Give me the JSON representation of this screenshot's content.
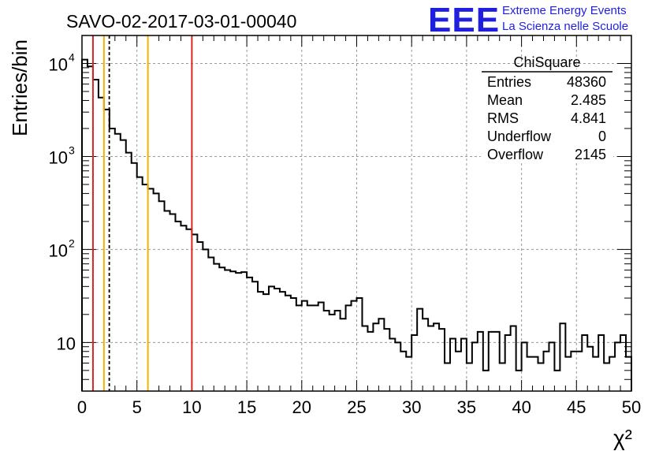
{
  "chart_data": {
    "type": "histogram",
    "title": "SAVO-02-2017-03-01-00040",
    "xlabel": "χ²",
    "ylabel": "Entries/bin",
    "xlim": [
      0,
      50
    ],
    "ylim": [
      3,
      20000
    ],
    "yscale": "log",
    "grid": true,
    "bin_width": 0.5,
    "x_ticks": [
      0,
      5,
      10,
      15,
      20,
      25,
      30,
      35,
      40,
      45,
      50
    ],
    "x_tick_labels": [
      "0",
      "5",
      "10",
      "15",
      "20",
      "25",
      "30",
      "35",
      "40",
      "45",
      "50"
    ],
    "y_ticks": [
      {
        "value": 10,
        "base": "10",
        "exp": ""
      },
      {
        "value": 100,
        "base": "10",
        "exp": "2"
      },
      {
        "value": 1000,
        "base": "10",
        "exp": "3"
      },
      {
        "value": 10000,
        "base": "10",
        "exp": "4"
      }
    ],
    "bin_counts": [
      11000,
      9300,
      6700,
      4300,
      3200,
      2000,
      1750,
      1500,
      1100,
      850,
      600,
      500,
      450,
      400,
      330,
      260,
      240,
      200,
      180,
      165,
      145,
      120,
      100,
      82,
      70,
      64,
      60,
      58,
      56,
      57,
      50,
      45,
      35,
      33,
      40,
      38,
      35,
      32,
      30,
      25,
      28,
      25,
      25,
      27,
      22,
      20,
      22,
      18,
      25,
      28,
      30,
      15,
      13,
      16,
      18,
      14,
      11,
      10,
      8,
      7,
      12,
      23,
      18,
      15,
      16,
      14,
      6,
      11,
      8,
      11,
      6,
      10,
      13,
      5,
      13,
      13,
      6,
      12,
      15,
      5,
      10,
      7,
      7,
      6,
      8,
      10,
      5,
      16,
      7,
      8,
      8,
      12,
      9,
      7,
      12,
      6,
      7,
      10,
      12,
      7
    ],
    "vertical_lines": [
      {
        "x": 1,
        "color": "#dd2222",
        "style": "solid"
      },
      {
        "x": 2,
        "color": "#f0b400",
        "style": "solid"
      },
      {
        "x": 2.485,
        "color": "#000000",
        "style": "dashed"
      },
      {
        "x": 6,
        "color": "#f0b400",
        "style": "solid"
      },
      {
        "x": 10,
        "color": "#dd2222",
        "style": "solid"
      }
    ],
    "stats_box": {
      "title": "ChiSquare",
      "rows": [
        {
          "label": "Entries",
          "value": "48360"
        },
        {
          "label": "Mean",
          "value": "2.485"
        },
        {
          "label": "RMS",
          "value": "4.841"
        },
        {
          "label": "Underflow",
          "value": "0"
        },
        {
          "label": "Overflow",
          "value": "2145"
        }
      ]
    },
    "logo": {
      "mark": "EEE",
      "line1": "Extreme Energy Events",
      "line2": "La Scienza nelle Scuole"
    },
    "colors": {
      "histogram": "#000000",
      "grid": "#999999",
      "logo": "#1f1fe0"
    }
  }
}
